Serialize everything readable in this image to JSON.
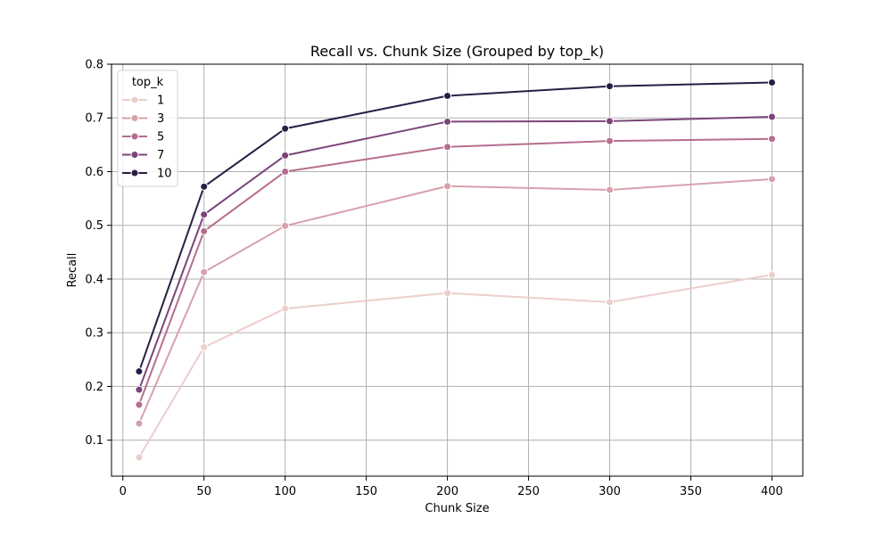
{
  "chart_data": {
    "type": "line",
    "title": "Recall vs. Chunk Size (Grouped by top_k)",
    "xlabel": "Chunk Size",
    "ylabel": "Recall",
    "x": [
      10,
      50,
      100,
      200,
      300,
      400
    ],
    "xlim": [
      -7,
      419
    ],
    "ylim": [
      0.033,
      0.8
    ],
    "xticks": [
      0,
      50,
      100,
      150,
      200,
      250,
      300,
      350,
      400
    ],
    "yticks": [
      0.1,
      0.2,
      0.3,
      0.4,
      0.5,
      0.6,
      0.7,
      0.8
    ],
    "grid": true,
    "legend": {
      "title": "top_k",
      "position": "top-left"
    },
    "series": [
      {
        "name": "1",
        "color": "#ebcfcc",
        "values": [
          0.068,
          0.273,
          0.345,
          0.374,
          0.357,
          0.408
        ]
      },
      {
        "name": "3",
        "color": "#d7a1ab",
        "values": [
          0.131,
          0.413,
          0.499,
          0.573,
          0.566,
          0.586
        ]
      },
      {
        "name": "5",
        "color": "#b66d8f",
        "values": [
          0.166,
          0.489,
          0.6,
          0.646,
          0.657,
          0.661
        ]
      },
      {
        "name": "7",
        "color": "#7b4479",
        "values": [
          0.194,
          0.52,
          0.63,
          0.693,
          0.694,
          0.702
        ]
      },
      {
        "name": "10",
        "color": "#2a1d43",
        "values": [
          0.228,
          0.572,
          0.68,
          0.741,
          0.759,
          0.766
        ]
      }
    ]
  }
}
